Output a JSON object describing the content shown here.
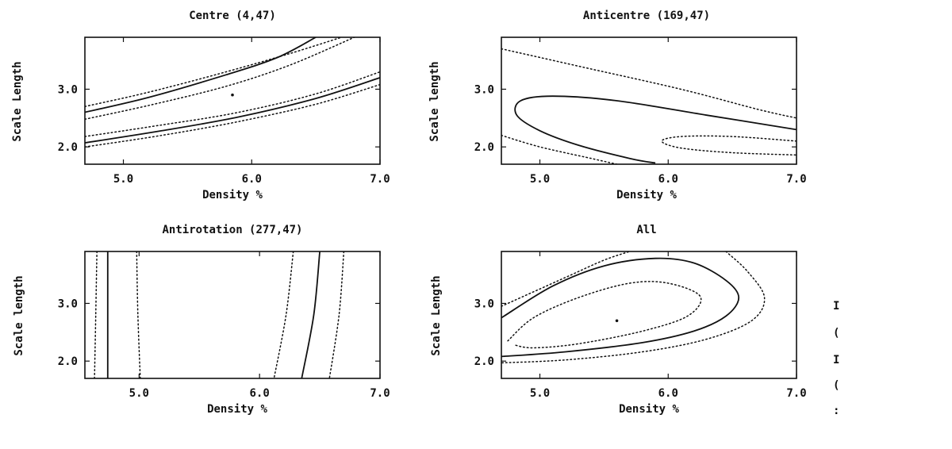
{
  "chart_data": [
    {
      "type": "contour",
      "title": "Centre (4,47)",
      "xlabel": "Density %",
      "ylabel": "Scale Length",
      "xlim": [
        4.7,
        7.0
      ],
      "ylim": [
        1.7,
        3.9
      ],
      "xticks": [
        "5.0",
        "6.0",
        "7.0"
      ],
      "yticks": [
        "2.0",
        "3.0"
      ],
      "best_fit": [
        5.85,
        2.9
      ],
      "contours": [
        {
          "style": "dotted",
          "points": [
            [
              4.7,
              2.7
            ],
            [
              5.2,
              2.95
            ],
            [
              5.8,
              3.3
            ],
            [
              6.3,
              3.62
            ],
            [
              6.7,
              3.9
            ]
          ]
        },
        {
          "style": "solid",
          "points": [
            [
              4.7,
              2.6
            ],
            [
              5.2,
              2.86
            ],
            [
              5.8,
              3.25
            ],
            [
              6.2,
              3.55
            ],
            [
              6.5,
              3.9
            ]
          ]
        },
        {
          "style": "dotted",
          "points": [
            [
              4.7,
              2.48
            ],
            [
              5.2,
              2.72
            ],
            [
              5.8,
              3.05
            ],
            [
              6.3,
              3.42
            ],
            [
              6.8,
              3.9
            ]
          ]
        },
        {
          "style": "dotted",
          "points": [
            [
              4.7,
              2.18
            ],
            [
              5.3,
              2.38
            ],
            [
              5.9,
              2.6
            ],
            [
              6.5,
              2.92
            ],
            [
              7.0,
              3.3
            ]
          ]
        },
        {
          "style": "solid",
          "points": [
            [
              4.7,
              2.07
            ],
            [
              5.3,
              2.28
            ],
            [
              5.9,
              2.52
            ],
            [
              6.5,
              2.84
            ],
            [
              7.0,
              3.2
            ]
          ]
        },
        {
          "style": "dotted",
          "points": [
            [
              4.7,
              2.0
            ],
            [
              5.3,
              2.2
            ],
            [
              5.9,
              2.44
            ],
            [
              6.5,
              2.74
            ],
            [
              7.0,
              3.08
            ]
          ]
        }
      ]
    },
    {
      "type": "contour",
      "title": "Anticentre (169,47)",
      "xlabel": "Density %",
      "ylabel": "Scale length",
      "xlim": [
        4.7,
        7.0
      ],
      "ylim": [
        1.7,
        3.9
      ],
      "xticks": [
        "5.0",
        "6.0",
        "7.0"
      ],
      "yticks": [
        "2.0",
        "3.0"
      ],
      "contours": [
        {
          "style": "dotted",
          "points": [
            [
              4.7,
              3.7
            ],
            [
              5.4,
              3.35
            ],
            [
              6.1,
              3.0
            ],
            [
              6.7,
              2.65
            ],
            [
              7.0,
              2.5
            ]
          ]
        },
        {
          "style": "solid",
          "points": [
            [
              7.0,
              2.3
            ],
            [
              6.3,
              2.55
            ],
            [
              5.6,
              2.8
            ],
            [
              5.1,
              2.88
            ],
            [
              4.85,
              2.8
            ],
            [
              4.82,
              2.55
            ],
            [
              5.0,
              2.28
            ],
            [
              5.3,
              2.03
            ],
            [
              5.7,
              1.8
            ],
            [
              5.9,
              1.72
            ]
          ]
        },
        {
          "style": "dotted",
          "points": [
            [
              4.7,
              2.2
            ],
            [
              5.0,
              2.0
            ],
            [
              5.4,
              1.8
            ],
            [
              5.6,
              1.7
            ]
          ]
        },
        {
          "style": "dotted",
          "points": [
            [
              7.0,
              2.1
            ],
            [
              6.5,
              2.18
            ],
            [
              6.1,
              2.18
            ],
            [
              5.95,
              2.1
            ],
            [
              6.1,
              1.98
            ],
            [
              6.5,
              1.9
            ],
            [
              7.0,
              1.86
            ]
          ]
        }
      ]
    },
    {
      "type": "contour",
      "title": "Antirotation (277,47)",
      "xlabel": "Density %",
      "ylabel": "Scale length",
      "xlim": [
        4.55,
        7.0
      ],
      "ylim": [
        1.7,
        3.9
      ],
      "xticks": [
        "5.0",
        "6.0",
        "7.0"
      ],
      "yticks": [
        "2.0",
        "3.0"
      ],
      "contours": [
        {
          "style": "dotted",
          "points": [
            [
              4.65,
              3.9
            ],
            [
              4.64,
              2.8
            ],
            [
              4.63,
              1.7
            ]
          ]
        },
        {
          "style": "solid",
          "points": [
            [
              4.74,
              3.9
            ],
            [
              4.74,
              2.8
            ],
            [
              4.74,
              1.7
            ]
          ]
        },
        {
          "style": "dotted",
          "points": [
            [
              4.98,
              3.9
            ],
            [
              4.99,
              2.8
            ],
            [
              5.01,
              1.7
            ]
          ]
        },
        {
          "style": "dotted",
          "points": [
            [
              6.28,
              3.9
            ],
            [
              6.22,
              2.8
            ],
            [
              6.12,
              1.7
            ]
          ]
        },
        {
          "style": "solid",
          "points": [
            [
              6.5,
              3.9
            ],
            [
              6.45,
              2.8
            ],
            [
              6.35,
              1.7
            ]
          ]
        },
        {
          "style": "dotted",
          "points": [
            [
              6.7,
              3.9
            ],
            [
              6.66,
              2.8
            ],
            [
              6.58,
              1.7
            ]
          ]
        }
      ]
    },
    {
      "type": "contour",
      "title": "All",
      "xlabel": "Density %",
      "ylabel": "Scale Length",
      "xlim": [
        4.7,
        7.0
      ],
      "ylim": [
        1.7,
        3.9
      ],
      "xticks": [
        "5.0",
        "6.0",
        "7.0"
      ],
      "yticks": [
        "2.0",
        "3.0"
      ],
      "best_fit": [
        5.6,
        2.7
      ],
      "contours": [
        {
          "style": "dotted",
          "points": [
            [
              4.7,
              2.95
            ],
            [
              5.2,
              3.45
            ],
            [
              5.5,
              3.75
            ],
            [
              5.7,
              3.9
            ]
          ]
        },
        {
          "style": "dotted",
          "points": [
            [
              6.45,
              3.9
            ],
            [
              6.62,
              3.55
            ],
            [
              6.75,
              3.1
            ],
            [
              6.65,
              2.7
            ],
            [
              6.3,
              2.38
            ],
            [
              5.8,
              2.16
            ],
            [
              5.2,
              2.02
            ],
            [
              4.7,
              1.97
            ]
          ]
        },
        {
          "style": "solid",
          "points": [
            [
              4.7,
              2.75
            ],
            [
              5.1,
              3.3
            ],
            [
              5.5,
              3.65
            ],
            [
              5.9,
              3.78
            ],
            [
              6.2,
              3.7
            ],
            [
              6.45,
              3.4
            ],
            [
              6.55,
              3.1
            ],
            [
              6.45,
              2.78
            ],
            [
              6.2,
              2.52
            ],
            [
              5.8,
              2.32
            ],
            [
              5.2,
              2.16
            ],
            [
              4.7,
              2.08
            ]
          ]
        },
        {
          "style": "dotted",
          "points": [
            [
              4.75,
              2.35
            ],
            [
              4.95,
              2.75
            ],
            [
              5.3,
              3.1
            ],
            [
              5.7,
              3.35
            ],
            [
              6.0,
              3.35
            ],
            [
              6.25,
              3.12
            ],
            [
              6.15,
              2.78
            ],
            [
              5.8,
              2.52
            ],
            [
              5.3,
              2.3
            ],
            [
              4.95,
              2.23
            ],
            [
              4.8,
              2.28
            ]
          ]
        }
      ]
    }
  ],
  "side_glyphs": [
    "I",
    "(",
    "I",
    "(",
    ":"
  ]
}
